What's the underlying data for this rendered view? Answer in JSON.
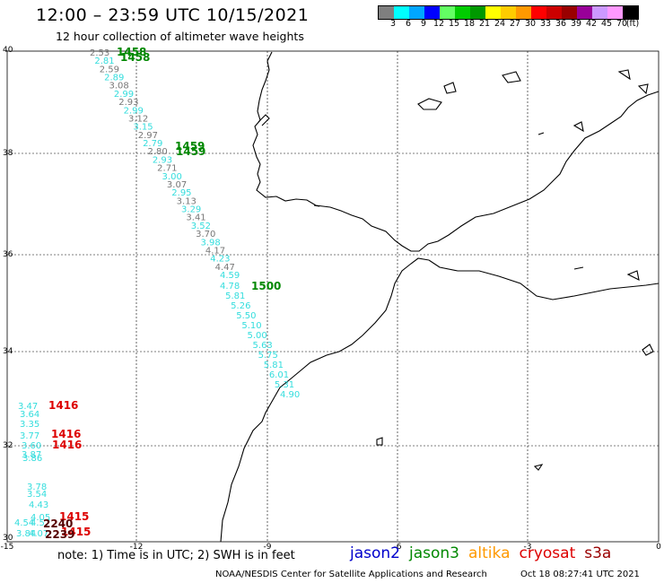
{
  "header": {
    "title": "12:00 – 23:59 UTC 10/15/2021",
    "subtitle": "12 hour collection of altimeter wave heights"
  },
  "scale": {
    "colors": [
      "#7f7f7f",
      "#00ffff",
      "#00a6ff",
      "#0000ff",
      "#63ff63",
      "#00cc00",
      "#009900",
      "#ffff00",
      "#ffcc00",
      "#ff9900",
      "#ff0000",
      "#cc0000",
      "#990000",
      "#990099",
      "#cc99ff",
      "#ff99ff",
      "#000000"
    ],
    "labels": [
      "3",
      "6",
      "9",
      "12",
      "15",
      "18",
      "21",
      "24",
      "27",
      "30",
      "33",
      "36",
      "39",
      "42",
      "45",
      "70",
      "(ft)"
    ]
  },
  "axes": {
    "lat_labels": [
      "40",
      "38",
      "36",
      "34",
      "32",
      "30"
    ],
    "lon_labels": [
      "-15",
      "-12",
      "-9",
      "-6",
      "-3",
      "0"
    ]
  },
  "track_a": {
    "color": "#33dddd",
    "alt_color": "#777777",
    "values": [
      "2.53",
      "2.81",
      "2.59",
      "2.89",
      "3.08",
      "2.99",
      "2.93",
      "2.99",
      "3.12",
      "3.15",
      "2.97",
      "2.79",
      "2.80",
      "2.93",
      "2.71",
      "3.00",
      "3.07",
      "2.95",
      "3.13",
      "3.29",
      "3.41",
      "3.52",
      "3.70",
      "3.98",
      "4.17",
      "4.23",
      "4.47",
      "4.59",
      "4.78",
      "5.81",
      "5.26",
      "5.50",
      "5.10",
      "5.00",
      "5.63",
      "5.75",
      "5.81",
      "6.01",
      "5.31",
      "4.90"
    ],
    "time_labels": [
      {
        "text": "1458",
        "color": "#008800"
      },
      {
        "text": "1458",
        "color": "#008800"
      },
      {
        "text": "1459",
        "color": "#008800"
      },
      {
        "text": "1459",
        "color": "#008800"
      },
      {
        "text": "1500",
        "color": "#008800"
      }
    ]
  },
  "track_b": {
    "values": [
      "3.47",
      "3.64",
      "3.35",
      "3.77",
      "3.60",
      "3.87",
      "3.86",
      "3.78",
      "3.54",
      "4.43",
      "4.05",
      "4.54",
      "4.57",
      "3.84",
      "4.07"
    ],
    "time_labels": [
      {
        "text": "1416",
        "color": "#dd0000"
      },
      {
        "text": "1416",
        "color": "#dd0000"
      },
      {
        "text": "1416",
        "color": "#dd0000"
      },
      {
        "text": "1415",
        "color": "#dd0000"
      },
      {
        "text": "1415",
        "color": "#dd0000"
      },
      {
        "text": "2240",
        "color": "#550000"
      },
      {
        "text": "2239",
        "color": "#550000"
      }
    ]
  },
  "footer": {
    "note": "note: 1) Time is in UTC; 2) SWH is in feet",
    "credit": "NOAA/NESDIS Center for Satellite Applications and Research",
    "timestamp": "Oct 18 08:27:41 UTC 2021"
  },
  "legend": [
    {
      "label": "jason2",
      "color": "#0000cc"
    },
    {
      "label": "jason3",
      "color": "#008800"
    },
    {
      "label": "altika",
      "color": "#ff9900"
    },
    {
      "label": "cryosat",
      "color": "#dd0000"
    },
    {
      "label": "s3a",
      "color": "#990000"
    }
  ]
}
